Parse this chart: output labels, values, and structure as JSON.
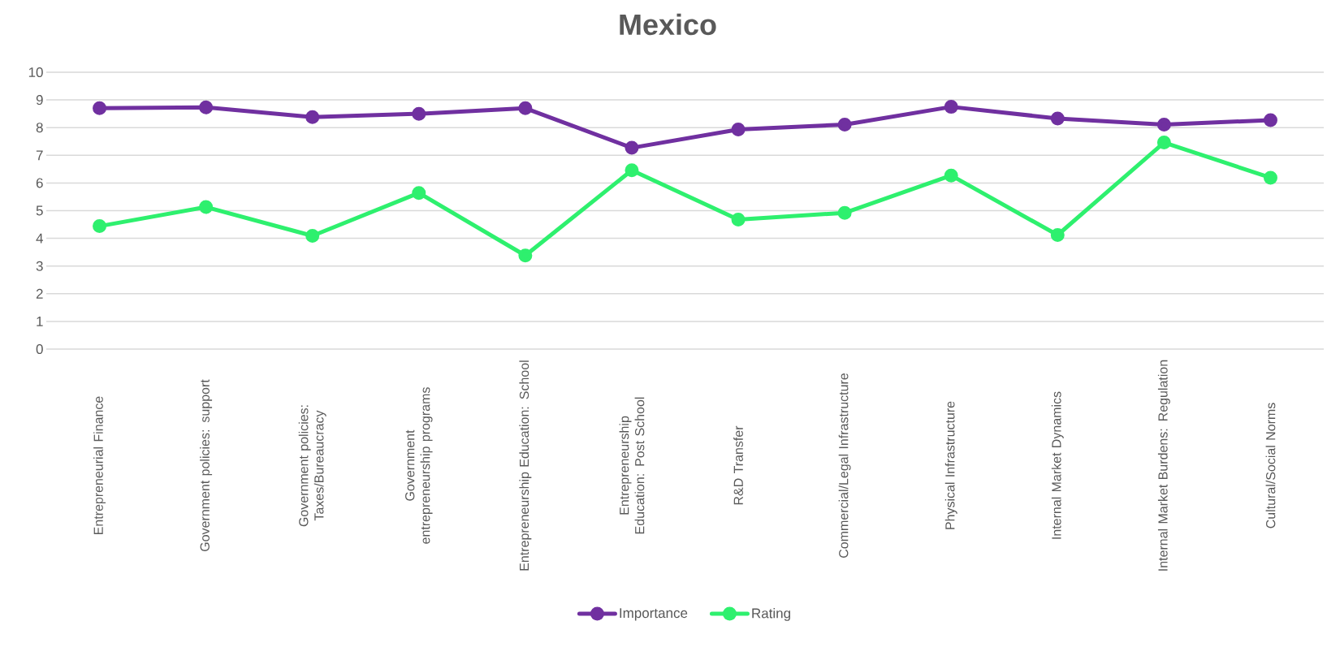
{
  "chart_data": {
    "type": "line",
    "title": "Mexico",
    "categories": [
      "Entrepreneurial Finance",
      "Government policies: support",
      "Government policies: Taxes/Bureaucracy",
      "Government entrepreneurship programs",
      "Entrepreneurship Education: School",
      "Entrepreneurship Education: Post School",
      "R&D Transfer",
      "Commercial/Legal Infrastructure",
      "Physical Infrastructure",
      "Internal Market Dynamics",
      "Internal Market Burdens: Regulation",
      "Cultural/Social Norms"
    ],
    "series": [
      {
        "name": "Importance",
        "color": "#7030a0",
        "values": [
          8.7,
          8.73,
          8.38,
          8.5,
          8.7,
          7.27,
          7.93,
          8.11,
          8.75,
          8.33,
          8.11,
          8.27
        ]
      },
      {
        "name": "Rating",
        "color": "#2ef06e",
        "values": [
          4.44,
          5.13,
          4.09,
          5.64,
          3.38,
          6.46,
          4.68,
          4.92,
          6.27,
          4.12,
          7.46,
          6.19
        ]
      }
    ],
    "ylim": [
      0,
      10
    ],
    "yticks": [
      0,
      1,
      2,
      3,
      4,
      5,
      6,
      7,
      8,
      9,
      10
    ],
    "grid": "y",
    "legend": "bottom",
    "marker": "circle",
    "line_style": "solid"
  }
}
